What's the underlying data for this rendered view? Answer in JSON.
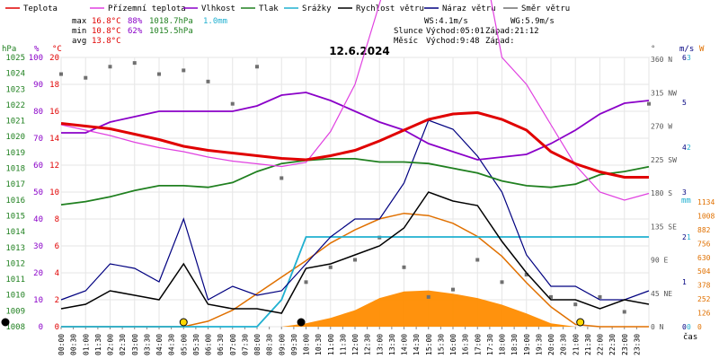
{
  "chart_data": {
    "type": "line",
    "title": "12.6.2024",
    "legend": [
      {
        "name": "Teplota",
        "color": "#e00000"
      },
      {
        "name": "Přízemní teplota",
        "color": "#e040e0"
      },
      {
        "name": "Vlhkost",
        "color": "#8a00c8"
      },
      {
        "name": "Tlak",
        "color": "#208020"
      },
      {
        "name": "Srážky",
        "color": "#20b0d0"
      },
      {
        "name": "Rychlost větru",
        "color": "#000000"
      },
      {
        "name": "Náraz větru",
        "color": "#000080"
      },
      {
        "name": "Směr větru",
        "color": "#707070"
      }
    ],
    "stats": {
      "max": {
        "label": "max",
        "temp": "16.8°C",
        "hum": "88%",
        "press": "1018.7hPa",
        "rain": "1.0mm"
      },
      "min": {
        "label": "min",
        "temp": "10.8°C",
        "hum": "62%",
        "press": "1015.5hPa"
      },
      "avg": {
        "label": "avg",
        "temp": "13.8°C"
      }
    },
    "wind_info": {
      "ws": "WS:4.1m/s",
      "wg": "WG:5.9m/s"
    },
    "sun": {
      "label": "Slunce",
      "rise": "Východ:05:01",
      "set": "Západ:21:12"
    },
    "moon": {
      "label": "Měsíc",
      "rise": "Východ:9:48",
      "set": "Západ:"
    },
    "axes": {
      "hpa": {
        "unit": "hPa",
        "ticks": [
          "1025",
          "1024",
          "1023",
          "1022",
          "1021",
          "1020",
          "1019",
          "1018",
          "1017",
          "1016",
          "1015",
          "1014",
          "1013",
          "1012",
          "1011",
          "1010",
          "1009",
          "1008"
        ],
        "range": [
          1008,
          1025
        ]
      },
      "pct": {
        "unit": "%",
        "ticks": [
          "100",
          "90",
          "80",
          "70",
          "60",
          "50",
          "40",
          "30",
          "20",
          "10",
          "0"
        ],
        "range": [
          0,
          100
        ]
      },
      "temp": {
        "unit": "°C",
        "ticks": [
          "20",
          "18",
          "16",
          "14",
          "12",
          "10",
          "8",
          "6",
          "4",
          "2",
          "0"
        ],
        "range": [
          0,
          20
        ]
      },
      "dir": {
        "unit": "°",
        "ticks": [
          "360 N",
          "315 NW",
          "270 W",
          "225 SW",
          "180 S",
          "135 SE",
          "90 E",
          "45 NE",
          "0 N"
        ]
      },
      "ms": {
        "unit": "m/s",
        "ticks": [
          "6",
          "5",
          "4",
          "3",
          "2",
          "1",
          "0"
        ]
      },
      "rain": {
        "unit": "mm",
        "ticks": [
          "3",
          "2",
          "1",
          "0"
        ]
      },
      "wm2": {
        "unit": "W",
        "ticks": [
          "1134",
          "1008",
          "882",
          "756",
          "630",
          "504",
          "378",
          "252",
          "126",
          "0"
        ]
      },
      "time_label": "čas",
      "x_ticks": [
        "00:00",
        "00:30",
        "01:00",
        "01:30",
        "02:00",
        "02:30",
        "03:00",
        "03:30",
        "04:00",
        "04:30",
        "05:00",
        "05:30",
        "06:00",
        "06:30",
        "07:00",
        "07:30",
        "08:00",
        "08:30",
        "09:00",
        "09:30",
        "10:00",
        "10:30",
        "11:00",
        "11:30",
        "12:00",
        "12:30",
        "13:00",
        "13:30",
        "14:00",
        "14:30",
        "15:00",
        "15:30",
        "16:00",
        "16:30",
        "17:00",
        "17:30",
        "18:00",
        "18:30",
        "19:00",
        "19:30",
        "20:00",
        "20:30",
        "21:00",
        "21:30",
        "22:00",
        "22:30",
        "23:00",
        "23:30"
      ]
    },
    "x_hours": [
      0,
      1,
      2,
      3,
      4,
      5,
      6,
      7,
      8,
      9,
      10,
      11,
      12,
      13,
      14,
      15,
      16,
      17,
      18,
      19,
      20,
      21,
      22,
      23,
      24
    ],
    "series": {
      "temperature": [
        15.1,
        14.9,
        14.7,
        14.3,
        13.9,
        13.4,
        13.1,
        12.9,
        12.7,
        12.5,
        12.4,
        12.7,
        13.1,
        13.8,
        14.6,
        15.4,
        15.8,
        15.9,
        15.4,
        14.6,
        13.0,
        12.1,
        11.5,
        11.1,
        11.1
      ],
      "ground_temperature": [
        15.0,
        14.6,
        14.2,
        13.7,
        13.3,
        13.0,
        12.6,
        12.3,
        12.1,
        11.9,
        12.2,
        14.5,
        18.0,
        24.0,
        30.0,
        31.0,
        30.0,
        29.5,
        20.0,
        18.0,
        15.0,
        12.0,
        10.0,
        9.4,
        9.9
      ],
      "humidity": [
        72,
        72,
        76,
        78,
        80,
        80,
        80,
        80,
        82,
        86,
        87,
        84,
        80,
        76,
        73,
        68,
        65,
        62,
        63,
        64,
        68,
        73,
        79,
        83,
        84
      ],
      "pressure": [
        1015.7,
        1015.9,
        1016.2,
        1016.6,
        1016.9,
        1016.9,
        1016.8,
        1017.1,
        1017.8,
        1018.3,
        1018.5,
        1018.6,
        1018.6,
        1018.4,
        1018.4,
        1018.3,
        1018.0,
        1017.7,
        1017.2,
        1016.9,
        1016.8,
        1017.0,
        1017.6,
        1017.8,
        1018.1
      ],
      "rain_total": [
        0,
        0,
        0,
        0,
        0,
        0,
        0,
        0,
        0,
        0.3,
        1.0,
        1.0,
        1.0,
        1.0,
        1.0,
        1.0,
        1.0,
        1.0,
        1.0,
        1.0,
        1.0,
        1.0,
        1.0,
        1.0,
        1.0
      ],
      "wind_speed": [
        0.4,
        0.5,
        0.8,
        0.7,
        0.6,
        1.4,
        0.5,
        0.4,
        0.4,
        0.3,
        1.3,
        1.4,
        1.6,
        1.8,
        2.2,
        3.0,
        2.8,
        2.7,
        1.9,
        1.2,
        0.6,
        0.6,
        0.4,
        0.6,
        0.5
      ],
      "wind_gust": [
        0.6,
        0.8,
        1.4,
        1.3,
        1.0,
        2.4,
        0.6,
        0.9,
        0.7,
        0.8,
        1.4,
        2.0,
        2.4,
        2.4,
        3.2,
        4.6,
        4.4,
        3.8,
        3.0,
        1.6,
        0.9,
        0.9,
        0.6,
        0.6,
        0.8
      ],
      "wind_direction": [
        340,
        335,
        350,
        355,
        340,
        345,
        330,
        300,
        350,
        200,
        60,
        80,
        90,
        120,
        80,
        40,
        50,
        90,
        60,
        70,
        40,
        30,
        40,
        20,
        300
      ],
      "solar_radiation": [
        0,
        0,
        0,
        0,
        0,
        0,
        0,
        0,
        0,
        0,
        30,
        80,
        150,
        260,
        320,
        330,
        300,
        260,
        200,
        120,
        30,
        0,
        0,
        0,
        0
      ],
      "solar_theoretical": [
        0,
        0,
        0,
        0,
        0,
        0,
        50,
        150,
        300,
        450,
        600,
        760,
        880,
        980,
        1030,
        1010,
        940,
        820,
        640,
        400,
        180,
        20,
        0,
        0,
        0
      ]
    }
  }
}
